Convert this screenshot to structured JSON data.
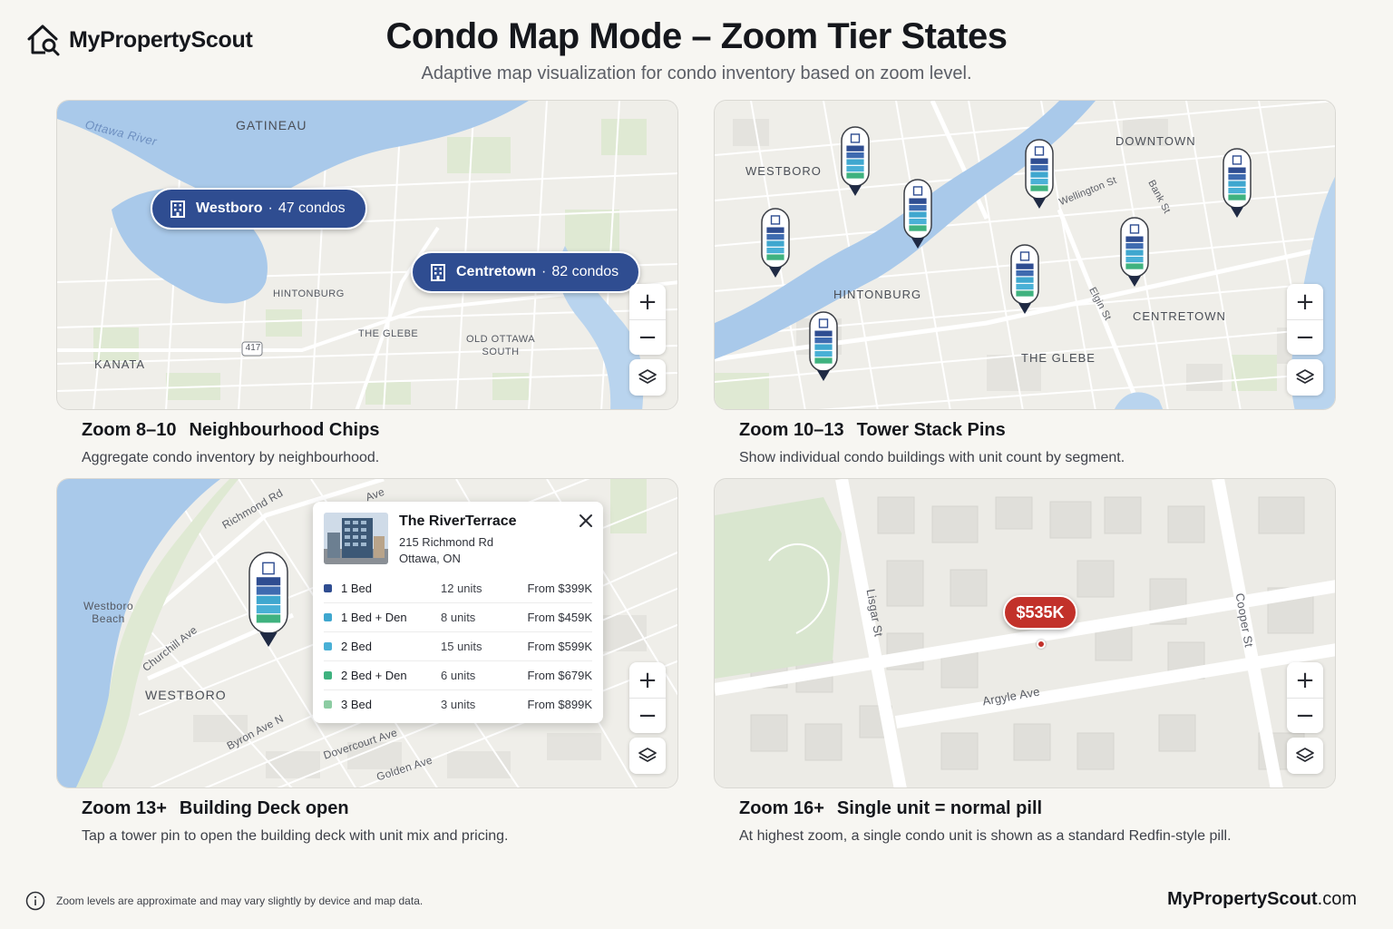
{
  "brand": {
    "name": "MyPropertyScout",
    "logo_icon": "house-search-icon"
  },
  "title": "Condo Map Mode – Zoom Tier States",
  "subtitle": "Adaptive map visualization for condo inventory based on zoom level.",
  "controls": {
    "zoom_in": "+",
    "zoom_out": "−",
    "layers_icon": "layers-icon"
  },
  "panels": [
    {
      "zoom": "Zoom 8–10",
      "name": "Neighbourhood Chips",
      "description": "Aggregate condo inventory by neighbourhood.",
      "labels": {
        "gatineau": "GATINEAU",
        "river": "Ottawa River",
        "hintonburg": "HINTONBURG",
        "glebe": "THE GLEBE",
        "old_ottawa_1": "OLD OTTAWA",
        "old_ottawa_2": "SOUTH",
        "kanata": "KANATA",
        "route": "417"
      },
      "chips": [
        {
          "name": "Westboro",
          "sep": "·",
          "count": "47 condos"
        },
        {
          "name": "Centretown",
          "sep": "·",
          "count": "82 condos"
        }
      ]
    },
    {
      "zoom": "Zoom 10–13",
      "name": "Tower Stack Pins",
      "description": "Show individual condo buildings with unit count by segment.",
      "labels": {
        "downtown": "DOWNTOWN",
        "westboro": "WESTBORO",
        "hintonburg": "HINTONBURG",
        "centretown": "CENTRETOWN",
        "glebe": "THE GLEBE",
        "wellington": "Wellington St",
        "bank": "Bank St",
        "elgin": "Elgin St"
      }
    },
    {
      "zoom": "Zoom 13+",
      "name": "Building Deck open",
      "description": "Tap a tower pin to open the building deck with unit mix and pricing.",
      "labels": {
        "richmond": "Richmond Rd",
        "ave": "Ave",
        "westboro_beach_1": "Westboro",
        "westboro_beach_2": "Beach",
        "churchill": "Churchill Ave",
        "westboro": "WESTBORO",
        "byron": "Byron Ave N",
        "dovercourt": "Dovercourt Ave",
        "golden": "Golden Ave"
      },
      "deck": {
        "name": "The RiverTerrace",
        "address_line1": "215 Richmond Rd",
        "address_line2": "Ottawa, ON",
        "close_icon": "close-icon",
        "rows": [
          {
            "type": "1 Bed",
            "units": "12 units",
            "price": "From $399K",
            "color": "#2f4d91"
          },
          {
            "type": "1 Bed + Den",
            "units": "8 units",
            "price": "From $459K",
            "color": "#3fa7cf"
          },
          {
            "type": "2 Bed",
            "units": "15 units",
            "price": "From $599K",
            "color": "#49b0d6"
          },
          {
            "type": "2 Bed + Den",
            "units": "6 units",
            "price": "From $679K",
            "color": "#3fb27f"
          },
          {
            "type": "3 Bed",
            "units": "3 units",
            "price": "From $899K",
            "color": "#8ccca2"
          }
        ]
      }
    },
    {
      "zoom": "Zoom 16+",
      "name": "Single unit = normal pill",
      "description": "At highest zoom, a single condo unit is shown as a standard Redfin-style pill.",
      "labels": {
        "lisgar": "Lisgar St",
        "cooper": "Cooper St",
        "argyle": "Argyle Ave"
      },
      "pill": "$535K"
    }
  ],
  "footer": {
    "note": "Zoom levels are approximate and may vary slightly by device and map data.",
    "info_icon": "info-icon",
    "brand_main": "MyPropertyScout",
    "brand_tld": ".com"
  },
  "colors": {
    "chip": "#2f4d91",
    "pill": "#c2312a",
    "water": "#a9c9ea",
    "park": "#d7e6cc"
  }
}
